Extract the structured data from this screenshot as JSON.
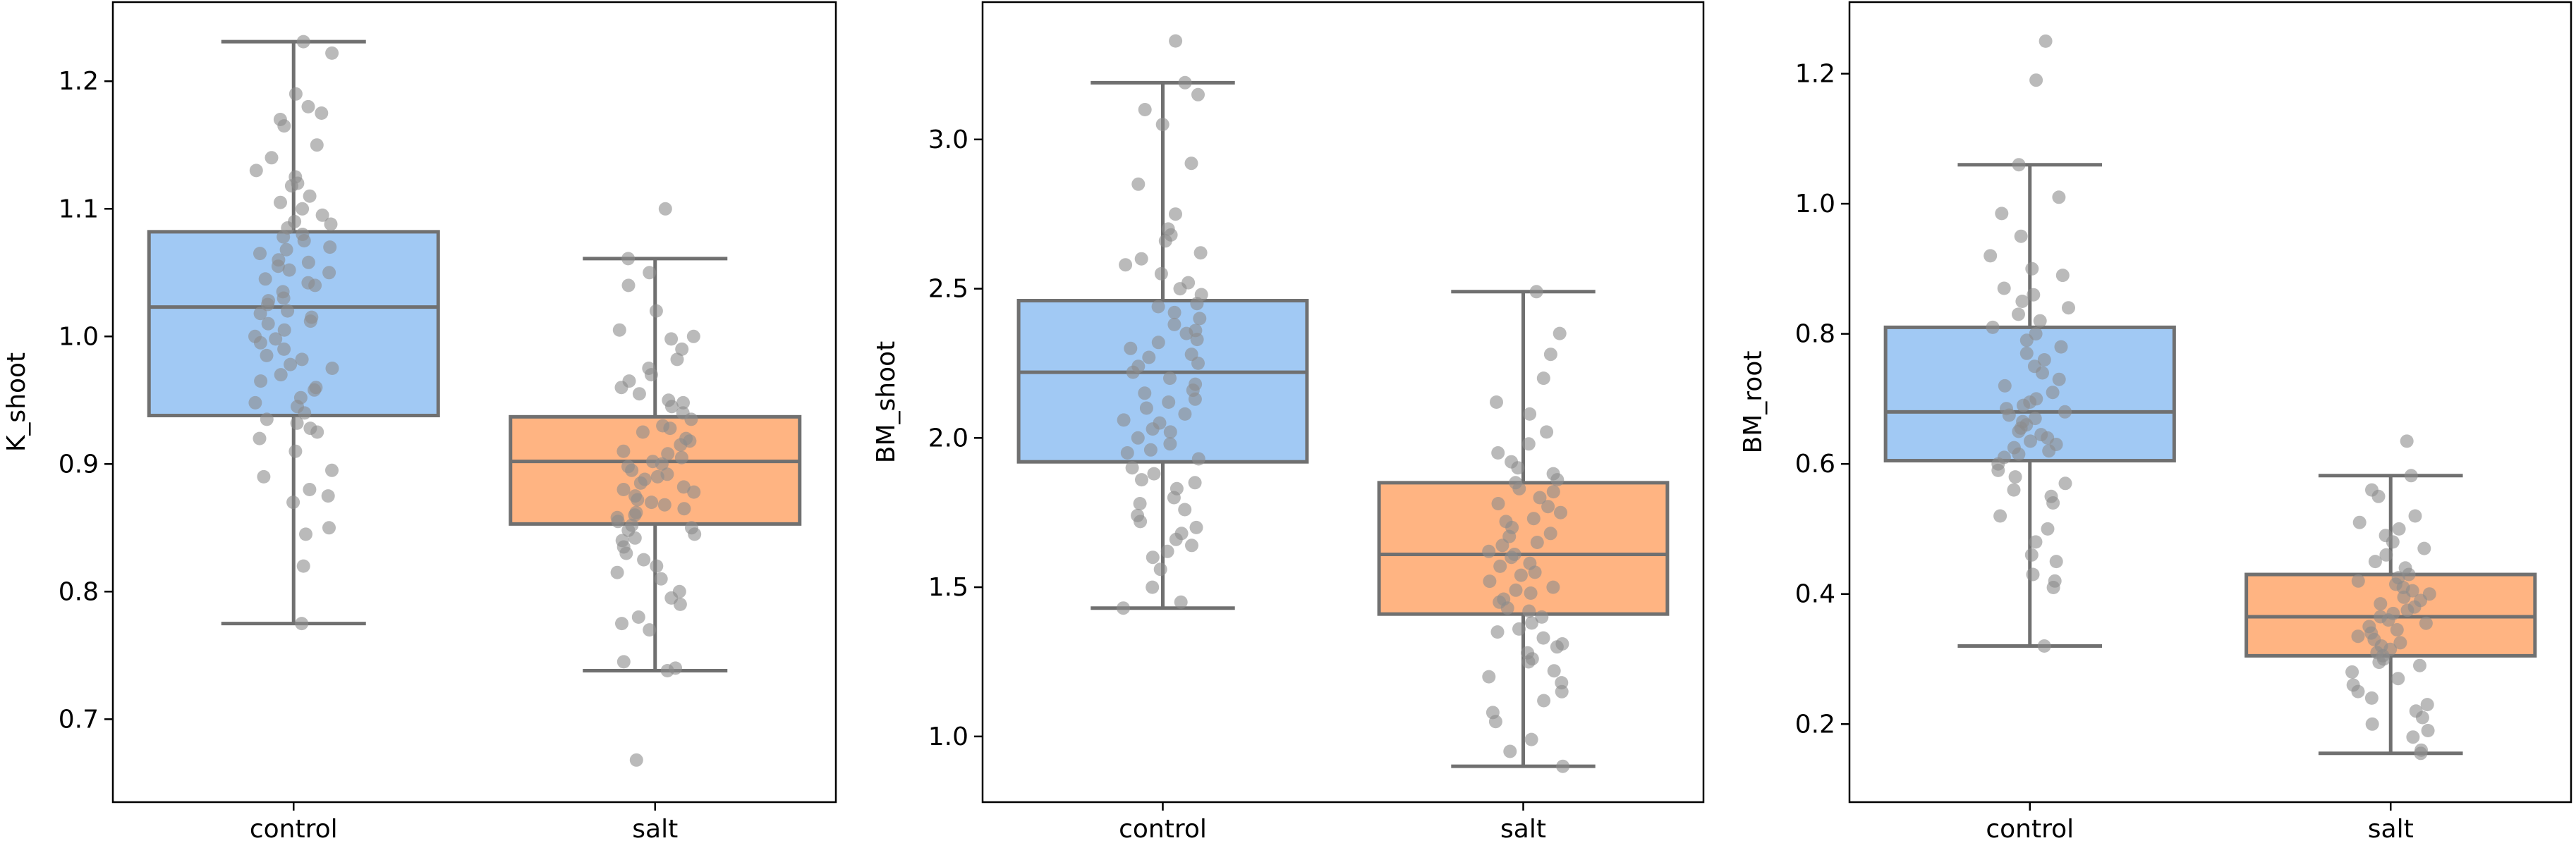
{
  "chart_data": [
    {
      "type": "box",
      "ylabel": "K_shoot",
      "categories": [
        "control",
        "salt"
      ],
      "ylim": [
        0.635,
        1.262
      ],
      "yticks": [
        0.7,
        0.8,
        0.9,
        1.0,
        1.1,
        1.2
      ],
      "series": [
        {
          "name": "control",
          "color": "#a1c9f4",
          "whisker_low": 0.775,
          "q1": 0.938,
          "median": 1.023,
          "q3": 1.082,
          "whisker_high": 1.231,
          "points": [
            1.231,
            1.222,
            1.19,
            1.18,
            1.175,
            1.17,
            1.165,
            1.15,
            1.14,
            1.13,
            1.125,
            1.12,
            1.118,
            1.11,
            1.105,
            1.1,
            1.095,
            1.09,
            1.088,
            1.085,
            1.08,
            1.078,
            1.075,
            1.07,
            1.068,
            1.065,
            1.06,
            1.058,
            1.055,
            1.052,
            1.05,
            1.045,
            1.042,
            1.04,
            1.035,
            1.03,
            1.028,
            1.025,
            1.02,
            1.018,
            1.015,
            1.012,
            1.01,
            1.005,
            1.0,
            0.998,
            0.995,
            0.99,
            0.985,
            0.982,
            0.978,
            0.975,
            0.97,
            0.965,
            0.96,
            0.958,
            0.952,
            0.948,
            0.945,
            0.94,
            0.935,
            0.932,
            0.928,
            0.925,
            0.92,
            0.91,
            0.895,
            0.89,
            0.88,
            0.875,
            0.87,
            0.85,
            0.845,
            0.82,
            0.775
          ]
        },
        {
          "name": "salt",
          "color": "#ffb482",
          "whisker_low": 0.738,
          "q1": 0.853,
          "median": 0.902,
          "q3": 0.937,
          "whisker_high": 1.061,
          "points": [
            1.1,
            1.061,
            1.05,
            1.04,
            1.02,
            1.005,
            1.0,
            0.998,
            0.99,
            0.982,
            0.975,
            0.97,
            0.965,
            0.96,
            0.955,
            0.95,
            0.948,
            0.945,
            0.94,
            0.935,
            0.93,
            0.928,
            0.925,
            0.92,
            0.918,
            0.915,
            0.91,
            0.908,
            0.905,
            0.902,
            0.9,
            0.898,
            0.895,
            0.892,
            0.89,
            0.888,
            0.885,
            0.882,
            0.88,
            0.878,
            0.875,
            0.872,
            0.87,
            0.868,
            0.865,
            0.862,
            0.86,
            0.858,
            0.855,
            0.852,
            0.85,
            0.848,
            0.845,
            0.842,
            0.84,
            0.835,
            0.83,
            0.825,
            0.82,
            0.815,
            0.81,
            0.8,
            0.795,
            0.79,
            0.78,
            0.775,
            0.77,
            0.745,
            0.74,
            0.738,
            0.668
          ]
        }
      ]
    },
    {
      "type": "box",
      "ylabel": "BM_shoot",
      "categories": [
        "control",
        "salt"
      ],
      "ylim": [
        0.78,
        3.46
      ],
      "yticks": [
        1.0,
        1.5,
        2.0,
        2.5,
        3.0
      ],
      "series": [
        {
          "name": "control",
          "color": "#a1c9f4",
          "whisker_low": 1.43,
          "q1": 1.92,
          "median": 2.22,
          "q3": 2.46,
          "whisker_high": 3.19,
          "points": [
            3.33,
            3.19,
            3.15,
            3.1,
            3.05,
            2.92,
            2.85,
            2.75,
            2.7,
            2.68,
            2.66,
            2.62,
            2.6,
            2.58,
            2.55,
            2.52,
            2.5,
            2.48,
            2.45,
            2.44,
            2.42,
            2.4,
            2.38,
            2.36,
            2.35,
            2.33,
            2.32,
            2.3,
            2.28,
            2.27,
            2.25,
            2.24,
            2.22,
            2.2,
            2.18,
            2.16,
            2.15,
            2.13,
            2.12,
            2.1,
            2.08,
            2.06,
            2.05,
            2.03,
            2.02,
            2.0,
            1.98,
            1.96,
            1.95,
            1.93,
            1.9,
            1.88,
            1.86,
            1.85,
            1.83,
            1.8,
            1.78,
            1.76,
            1.74,
            1.72,
            1.7,
            1.68,
            1.66,
            1.64,
            1.62,
            1.6,
            1.56,
            1.5,
            1.45,
            1.43
          ]
        },
        {
          "name": "salt",
          "color": "#ffb482",
          "whisker_low": 0.9,
          "q1": 1.41,
          "median": 1.61,
          "q3": 1.85,
          "whisker_high": 2.49,
          "points": [
            2.49,
            2.35,
            2.28,
            2.2,
            2.12,
            2.08,
            2.02,
            1.98,
            1.95,
            1.92,
            1.9,
            1.88,
            1.86,
            1.85,
            1.83,
            1.82,
            1.8,
            1.78,
            1.77,
            1.75,
            1.73,
            1.72,
            1.7,
            1.68,
            1.67,
            1.65,
            1.64,
            1.62,
            1.61,
            1.6,
            1.58,
            1.57,
            1.55,
            1.54,
            1.52,
            1.5,
            1.49,
            1.48,
            1.46,
            1.45,
            1.43,
            1.42,
            1.4,
            1.38,
            1.36,
            1.35,
            1.33,
            1.31,
            1.3,
            1.28,
            1.26,
            1.25,
            1.22,
            1.2,
            1.18,
            1.15,
            1.12,
            1.08,
            1.05,
            0.99,
            0.95,
            0.9
          ]
        }
      ]
    },
    {
      "type": "box",
      "ylabel": "BM_root",
      "categories": [
        "control",
        "salt"
      ],
      "ylim": [
        0.08,
        1.31
      ],
      "yticks": [
        0.2,
        0.4,
        0.6,
        0.8,
        1.0,
        1.2
      ],
      "series": [
        {
          "name": "control",
          "color": "#a1c9f4",
          "whisker_low": 0.32,
          "q1": 0.605,
          "median": 0.68,
          "q3": 0.81,
          "whisker_high": 1.06,
          "points": [
            1.25,
            1.19,
            1.06,
            1.01,
            0.985,
            0.95,
            0.92,
            0.9,
            0.89,
            0.87,
            0.86,
            0.85,
            0.84,
            0.83,
            0.82,
            0.81,
            0.8,
            0.79,
            0.78,
            0.77,
            0.76,
            0.75,
            0.74,
            0.73,
            0.72,
            0.71,
            0.7,
            0.695,
            0.69,
            0.685,
            0.68,
            0.675,
            0.67,
            0.665,
            0.66,
            0.655,
            0.65,
            0.645,
            0.64,
            0.635,
            0.63,
            0.625,
            0.62,
            0.615,
            0.61,
            0.6,
            0.59,
            0.58,
            0.57,
            0.56,
            0.55,
            0.54,
            0.52,
            0.5,
            0.48,
            0.46,
            0.45,
            0.43,
            0.42,
            0.41,
            0.32
          ]
        },
        {
          "name": "salt",
          "color": "#ffb482",
          "whisker_low": 0.155,
          "q1": 0.305,
          "median": 0.365,
          "q3": 0.43,
          "whisker_high": 0.582,
          "points": [
            0.635,
            0.582,
            0.56,
            0.55,
            0.52,
            0.51,
            0.5,
            0.49,
            0.48,
            0.47,
            0.46,
            0.45,
            0.44,
            0.43,
            0.425,
            0.42,
            0.415,
            0.41,
            0.405,
            0.4,
            0.395,
            0.39,
            0.385,
            0.38,
            0.375,
            0.37,
            0.365,
            0.36,
            0.355,
            0.35,
            0.345,
            0.34,
            0.335,
            0.33,
            0.325,
            0.32,
            0.315,
            0.31,
            0.305,
            0.3,
            0.295,
            0.29,
            0.28,
            0.27,
            0.26,
            0.25,
            0.24,
            0.23,
            0.22,
            0.21,
            0.2,
            0.19,
            0.18,
            0.16,
            0.155
          ]
        }
      ]
    }
  ]
}
